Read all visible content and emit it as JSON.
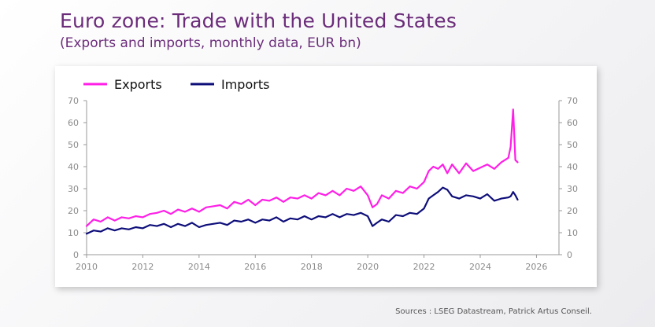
{
  "header": {
    "title": "Euro zone: Trade with the United States",
    "subtitle": "(Exports and imports, monthly data, EUR bn)"
  },
  "footer": {
    "source": "Sources : LSEG Datastream, Patrick Artus Conseil."
  },
  "colors": {
    "title": "#6b2c7a",
    "exports": "#ff1fe6",
    "imports": "#0e0e7a",
    "axis": "#9a9a9a"
  },
  "chart_data": {
    "type": "line",
    "title": "",
    "xlabel": "",
    "ylabel": "",
    "xlim": [
      2010,
      2026.8
    ],
    "ylim": [
      0,
      70
    ],
    "x_ticks": [
      "2010",
      "2012",
      "2014",
      "2016",
      "2018",
      "2020",
      "2022",
      "2024",
      "2026"
    ],
    "y_ticks": [
      "0",
      "10",
      "20",
      "30",
      "40",
      "50",
      "60",
      "70"
    ],
    "y_axis_right": true,
    "grid": false,
    "legend_position": "top-left",
    "series": [
      {
        "name": "Exports",
        "x": [
          2010.0,
          2010.25,
          2010.5,
          2010.75,
          2011.0,
          2011.25,
          2011.5,
          2011.75,
          2012.0,
          2012.25,
          2012.5,
          2012.75,
          2013.0,
          2013.25,
          2013.5,
          2013.75,
          2014.0,
          2014.25,
          2014.5,
          2014.75,
          2015.0,
          2015.25,
          2015.5,
          2015.75,
          2016.0,
          2016.25,
          2016.5,
          2016.75,
          2017.0,
          2017.25,
          2017.5,
          2017.75,
          2018.0,
          2018.25,
          2018.5,
          2018.75,
          2019.0,
          2019.25,
          2019.5,
          2019.75,
          2020.0,
          2020.17,
          2020.33,
          2020.5,
          2020.75,
          2021.0,
          2021.25,
          2021.5,
          2021.75,
          2022.0,
          2022.17,
          2022.33,
          2022.5,
          2022.67,
          2022.83,
          2023.0,
          2023.25,
          2023.5,
          2023.75,
          2024.0,
          2024.25,
          2024.5,
          2024.75,
          2025.0,
          2025.08,
          2025.17,
          2025.25,
          2025.33
        ],
        "values": [
          13,
          16,
          15,
          17,
          15.5,
          17,
          16.5,
          17.5,
          17,
          18.5,
          19,
          20,
          18.5,
          20.5,
          19.5,
          21,
          19.5,
          21.5,
          22,
          22.5,
          21,
          24,
          23,
          25,
          22.5,
          25,
          24.5,
          26,
          24,
          26,
          25.5,
          27,
          25.5,
          28,
          27,
          29,
          27,
          30,
          29,
          31,
          27,
          21.5,
          23,
          27,
          25.5,
          29,
          28,
          31,
          30,
          33,
          38,
          40,
          39,
          41,
          37,
          41,
          37,
          41.5,
          38,
          39.5,
          41,
          39,
          42,
          44,
          49,
          66,
          43,
          42
        ]
      },
      {
        "name": "Imports",
        "x": [
          2010.0,
          2010.25,
          2010.5,
          2010.75,
          2011.0,
          2011.25,
          2011.5,
          2011.75,
          2012.0,
          2012.25,
          2012.5,
          2012.75,
          2013.0,
          2013.25,
          2013.5,
          2013.75,
          2014.0,
          2014.25,
          2014.5,
          2014.75,
          2015.0,
          2015.25,
          2015.5,
          2015.75,
          2016.0,
          2016.25,
          2016.5,
          2016.75,
          2017.0,
          2017.25,
          2017.5,
          2017.75,
          2018.0,
          2018.25,
          2018.5,
          2018.75,
          2019.0,
          2019.25,
          2019.5,
          2019.75,
          2020.0,
          2020.17,
          2020.33,
          2020.5,
          2020.75,
          2021.0,
          2021.25,
          2021.5,
          2021.75,
          2022.0,
          2022.17,
          2022.33,
          2022.5,
          2022.67,
          2022.83,
          2023.0,
          2023.25,
          2023.5,
          2023.75,
          2024.0,
          2024.25,
          2024.5,
          2024.75,
          2025.0,
          2025.08,
          2025.17,
          2025.25,
          2025.33
        ],
        "values": [
          9.5,
          11,
          10.5,
          12,
          11,
          12,
          11.5,
          12.5,
          12,
          13.5,
          13,
          14,
          12.5,
          14,
          13,
          14.5,
          12.5,
          13.5,
          14,
          14.5,
          13.5,
          15.5,
          15,
          16,
          14.5,
          16,
          15.5,
          17,
          15,
          16.5,
          16,
          17.5,
          16,
          17.5,
          17,
          18.5,
          17,
          18.5,
          18,
          19,
          17.5,
          13,
          14.5,
          16,
          15,
          18,
          17.5,
          19,
          18.5,
          21,
          25.5,
          27,
          28.5,
          30.5,
          29.5,
          26.5,
          25.5,
          27,
          26.5,
          25.5,
          27.5,
          24.5,
          25.5,
          26,
          26.5,
          28.5,
          27,
          25
        ]
      }
    ]
  }
}
